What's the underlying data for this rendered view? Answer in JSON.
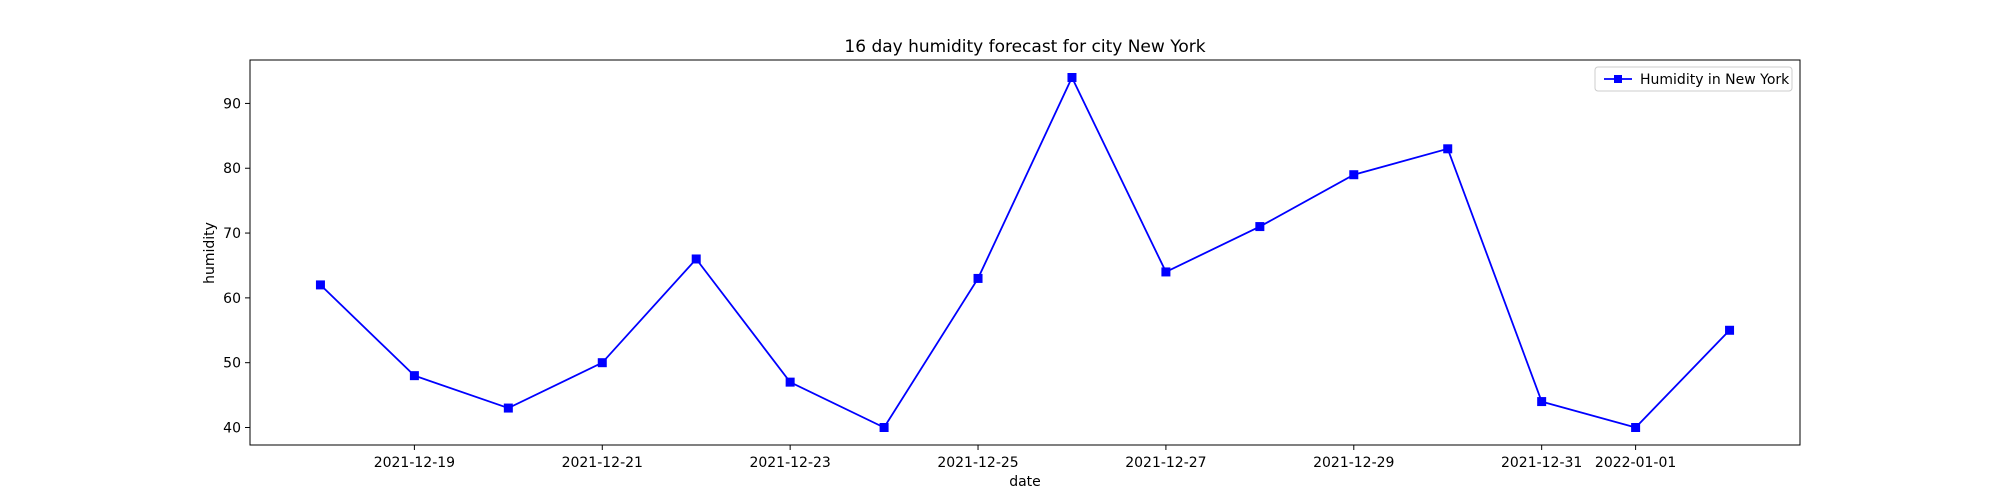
{
  "chart_data": {
    "type": "line",
    "title": "16 day humidity forecast for city New York",
    "xlabel": "date",
    "ylabel": "humidity",
    "x": [
      "2021-12-18",
      "2021-12-19",
      "2021-12-20",
      "2021-12-21",
      "2021-12-22",
      "2021-12-23",
      "2021-12-24",
      "2021-12-25",
      "2021-12-26",
      "2021-12-27",
      "2021-12-28",
      "2021-12-29",
      "2021-12-30",
      "2021-12-31",
      "2022-01-01",
      "2022-01-02"
    ],
    "x_tick_labels": [
      "2021-12-19",
      "2021-12-21",
      "2021-12-23",
      "2021-12-25",
      "2021-12-27",
      "2021-12-29",
      "2021-12-31",
      "2022-01-01"
    ],
    "y_ticks": [
      40,
      50,
      60,
      70,
      80,
      90
    ],
    "ylim": [
      37.3,
      96.7
    ],
    "grid": false,
    "legend_position": "top-right",
    "series": [
      {
        "name": "Humidity in New York",
        "color": "#0000ff",
        "marker": "square",
        "values": [
          62,
          48,
          43,
          50,
          66,
          47,
          40,
          63,
          94,
          64,
          71,
          79,
          83,
          44,
          40,
          55
        ]
      }
    ]
  }
}
